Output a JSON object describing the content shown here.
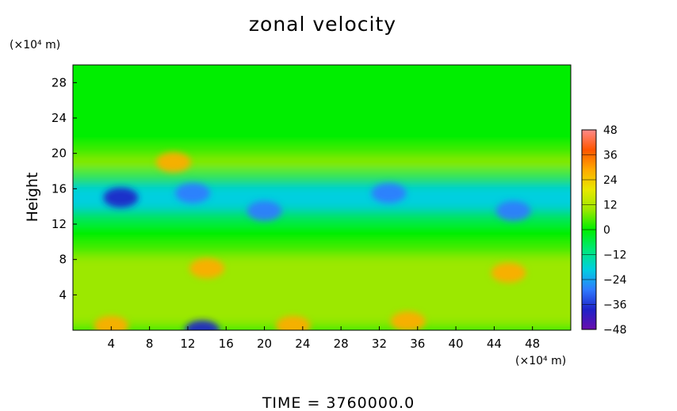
{
  "chart_data": {
    "type": "heatmap",
    "title": "zonal velocity",
    "ylabel": "Height",
    "x_unit": "(×10⁴ m)",
    "y_unit": "(×10⁴ m)",
    "xlim": [
      0,
      52
    ],
    "ylim": [
      0,
      30
    ],
    "x_ticks": [
      4,
      8,
      12,
      16,
      20,
      24,
      28,
      32,
      36,
      40,
      44,
      48
    ],
    "y_ticks": [
      4,
      8,
      12,
      16,
      20,
      24,
      28
    ],
    "colorbar": {
      "range": [
        -48,
        48
      ],
      "ticks": [
        48,
        36,
        24,
        12,
        0,
        -12,
        -24,
        -36,
        -48
      ],
      "tick_labels": [
        "48",
        "36",
        "24",
        "12",
        "0",
        "−12",
        "−24",
        "−36",
        "−48"
      ],
      "colormap": [
        "#6a0dad",
        "#1e22c8",
        "#2f7bff",
        "#00cfe0",
        "#00e878",
        "#00ee00",
        "#9ce800",
        "#e8e800",
        "#ffaa00",
        "#ff5500",
        "#ff8a8a"
      ]
    },
    "bands": [
      {
        "y_range": [
          21,
          30
        ],
        "value": 2
      },
      {
        "y_range": [
          18,
          20
        ],
        "value": 11
      },
      {
        "y_range": [
          13,
          17
        ],
        "value": -20
      },
      {
        "y_range": [
          10,
          12
        ],
        "value": 0
      },
      {
        "y_range": [
          0,
          9
        ],
        "value": 6
      }
    ],
    "features": [
      {
        "x": 14,
        "y": 7,
        "value": 26
      },
      {
        "x": 45.5,
        "y": 6.5,
        "value": 30
      },
      {
        "x": 10.5,
        "y": 19,
        "value": 30
      },
      {
        "x": 4,
        "y": 0.5,
        "value": 32
      },
      {
        "x": 23,
        "y": 0.5,
        "value": 30
      },
      {
        "x": 35,
        "y": 1,
        "value": 28
      },
      {
        "x": 5,
        "y": 15,
        "value": -34
      },
      {
        "x": 12.5,
        "y": 15.5,
        "value": -32
      },
      {
        "x": 20,
        "y": 13.5,
        "value": -28
      },
      {
        "x": 33,
        "y": 15.5,
        "value": -28
      },
      {
        "x": 46,
        "y": 13.5,
        "value": -30
      },
      {
        "x": 13.5,
        "y": 0,
        "value": -34
      }
    ]
  },
  "footer": {
    "time_label": "TIME  =  3760000.0"
  }
}
